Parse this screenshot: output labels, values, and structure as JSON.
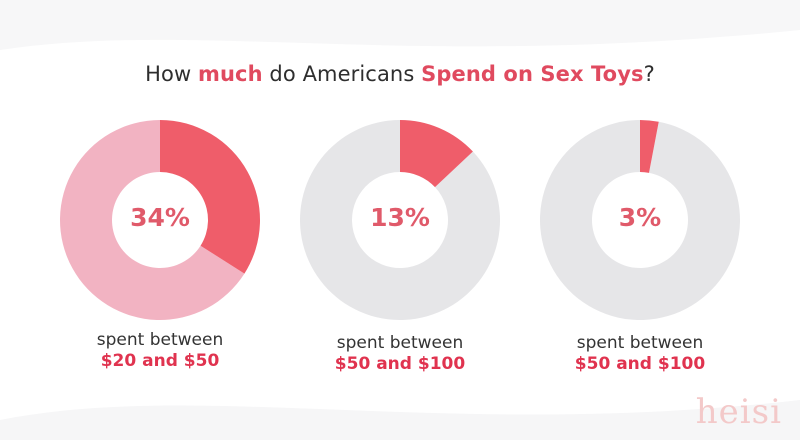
{
  "title": {
    "pre1": "How ",
    "hl1": "much",
    "mid": " do Americans ",
    "hl2": "Spend on Sex Toys",
    "end": "?"
  },
  "chart_data": {
    "type": "pie",
    "title": "How much do Americans Spend on Sex Toys?",
    "charts": [
      {
        "value": 34,
        "label": "34%",
        "caption_line1": "spent between",
        "caption_line2": "$20 and $50"
      },
      {
        "value": 13,
        "label": "13%",
        "caption_line1": "spent between",
        "caption_line2": "$50 and $100"
      },
      {
        "value": 3,
        "label": "3%",
        "caption_line1": "spent between",
        "caption_line2": "$50 and $100"
      }
    ]
  },
  "colors": {
    "highlight": "#ef5d6a",
    "remainder_first": "#f2b3c2",
    "remainder_other": "#e6e6e8",
    "title_accent": "#e04a5f"
  },
  "watermark": "heisi"
}
